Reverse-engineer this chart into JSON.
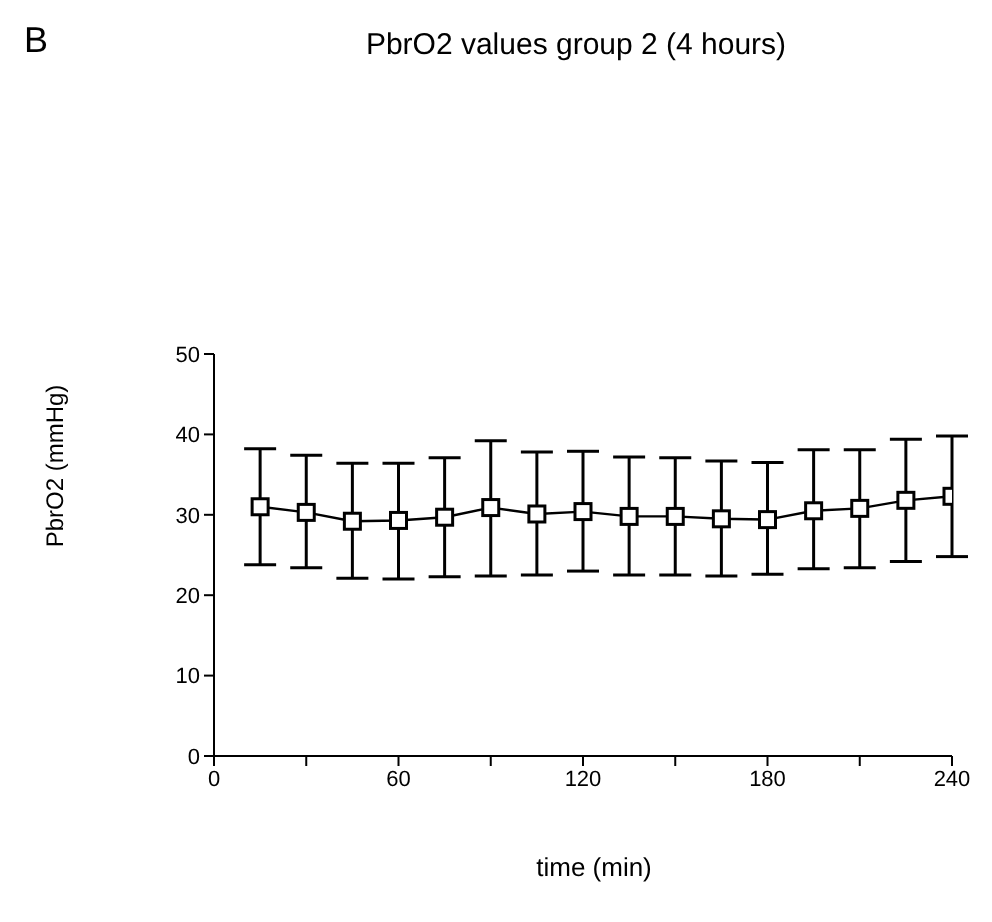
{
  "chart_data": {
    "type": "line",
    "title": "PbrO2 values group 2 (4 hours)",
    "xlabel": "time (min)",
    "ylabel": "PbrO2 (mmHg)",
    "annotations": [
      "B"
    ],
    "x": [
      15,
      30,
      45,
      60,
      75,
      90,
      105,
      120,
      135,
      150,
      165,
      180,
      195,
      210,
      225,
      240
    ],
    "series": [
      {
        "color": "#000000",
        "values": [
          31,
          30.3,
          29.2,
          29.3,
          29.7,
          30.9,
          30.1,
          30.4,
          29.8,
          29.8,
          29.5,
          29.4,
          30.5,
          30.8,
          31.8,
          32.3
        ],
        "errors": [
          [
            23.8,
            38.2
          ],
          [
            23.4,
            37.4
          ],
          [
            22.1,
            36.4
          ],
          [
            22,
            36.4
          ],
          [
            22.3,
            37.1
          ],
          [
            22.4,
            39.2
          ],
          [
            22.5,
            37.8
          ],
          [
            23,
            37.9
          ],
          [
            22.5,
            37.2
          ],
          [
            22.5,
            37.1
          ],
          [
            22.4,
            36.7
          ],
          [
            22.6,
            36.5
          ],
          [
            23.3,
            38.1
          ],
          [
            23.4,
            38.1
          ],
          [
            24.2,
            39.4
          ],
          [
            24.8,
            39.8
          ]
        ]
      }
    ],
    "xlim": [
      0,
      240
    ],
    "xticks": [
      0,
      {
        "value": 30,
        "label": null
      },
      60,
      {
        "value": 90,
        "label": null
      },
      120,
      {
        "value": 150,
        "label": null
      },
      180,
      {
        "value": 210,
        "label": null
      },
      240
    ],
    "ylim": [
      0,
      50
    ],
    "yticks": [
      0,
      10,
      20,
      30,
      40,
      50
    ],
    "marker": "square",
    "line_style": "solid"
  }
}
